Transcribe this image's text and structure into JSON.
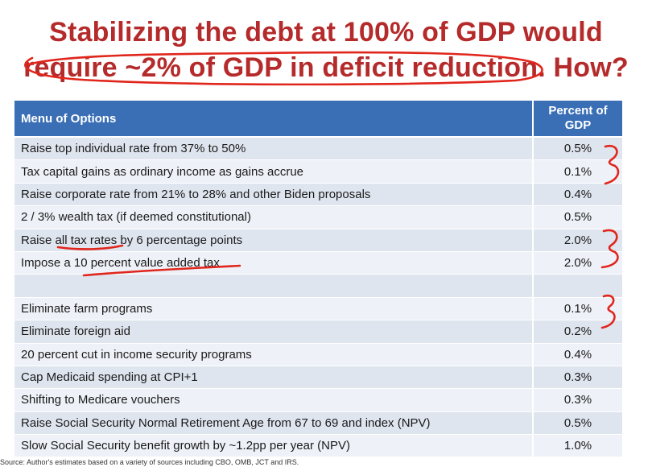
{
  "title": {
    "line1": "Stabilizing the debt at 100% of GDP would",
    "line2": "require ~2% of GDP in deficit reduction. How?"
  },
  "table": {
    "header_option": "Menu of Options",
    "header_percent_line1": "Percent of",
    "header_percent_line2": "GDP",
    "rows": [
      {
        "option": "Raise top individual rate from 37% to 50%",
        "percent": "0.5%"
      },
      {
        "option": "Tax capital gains as ordinary income as gains accrue",
        "percent": "0.1%"
      },
      {
        "option": "Raise corporate rate from 21% to 28% and other Biden proposals",
        "percent": "0.4%"
      },
      {
        "option": "2 / 3% wealth tax (if deemed constitutional)",
        "percent": "0.5%"
      },
      {
        "option": "Raise all tax rates by 6 percentage points",
        "percent": "2.0%"
      },
      {
        "option": "Impose a 10 percent value added tax",
        "percent": "2.0%"
      },
      {
        "option": "",
        "percent": ""
      },
      {
        "option": "Eliminate farm programs",
        "percent": "0.1%"
      },
      {
        "option": "Eliminate foreign aid",
        "percent": "0.2%"
      },
      {
        "option": "20 percent cut in income security programs",
        "percent": "0.4%"
      },
      {
        "option": "Cap Medicaid spending at CPI+1",
        "percent": "0.3%"
      },
      {
        "option": "Shifting to Medicare vouchers",
        "percent": "0.3%"
      },
      {
        "option": "Raise Social Security Normal Retirement Age from 67 to 69 and index (NPV)",
        "percent": "0.5%"
      },
      {
        "option": "Slow Social Security benefit growth by ~1.2pp per year (NPV)",
        "percent": "1.0%"
      }
    ]
  },
  "source": "Source: Author's estimates based on a variety of sources including CBO, OMB, JCT and IRS.",
  "colors": {
    "title": "#b52a2a",
    "header_bg": "#3a6fb6",
    "row_dark": "#dfe5ef",
    "row_light": "#eef1f7",
    "annotation_ink": "#e0261c"
  }
}
